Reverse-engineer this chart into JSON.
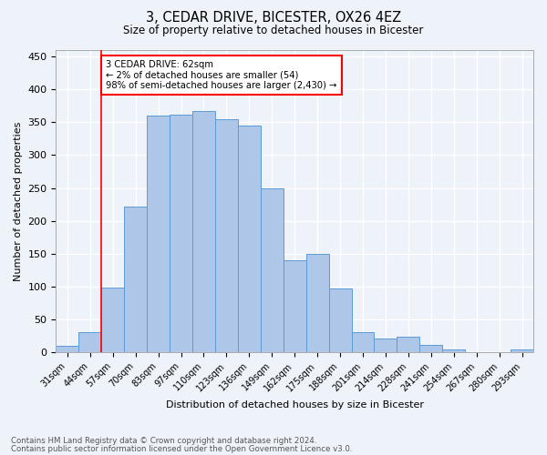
{
  "title1": "3, CEDAR DRIVE, BICESTER, OX26 4EZ",
  "title2": "Size of property relative to detached houses in Bicester",
  "xlabel": "Distribution of detached houses by size in Bicester",
  "ylabel": "Number of detached properties",
  "footnote1": "Contains HM Land Registry data © Crown copyright and database right 2024.",
  "footnote2": "Contains public sector information licensed under the Open Government Licence v3.0.",
  "annotation_line1": "3 CEDAR DRIVE: 62sqm",
  "annotation_line2": "← 2% of detached houses are smaller (54)",
  "annotation_line3": "98% of semi-detached houses are larger (2,430) →",
  "categories": [
    "31sqm",
    "44sqm",
    "57sqm",
    "70sqm",
    "83sqm",
    "97sqm",
    "110sqm",
    "123sqm",
    "136sqm",
    "149sqm",
    "162sqm",
    "175sqm",
    "188sqm",
    "201sqm",
    "214sqm",
    "228sqm",
    "241sqm",
    "254sqm",
    "267sqm",
    "280sqm",
    "293sqm"
  ],
  "values": [
    10,
    30,
    98,
    222,
    360,
    362,
    367,
    355,
    345,
    250,
    140,
    150,
    97,
    30,
    21,
    23,
    11,
    4,
    0,
    0,
    4
  ],
  "bar_color": "#aec6e8",
  "bar_edge_color": "#5b9bd5",
  "vline_x": 1.5,
  "vline_color": "red",
  "ylim": [
    0,
    460
  ],
  "background_color": "#eef2f9",
  "grid_color": "white"
}
